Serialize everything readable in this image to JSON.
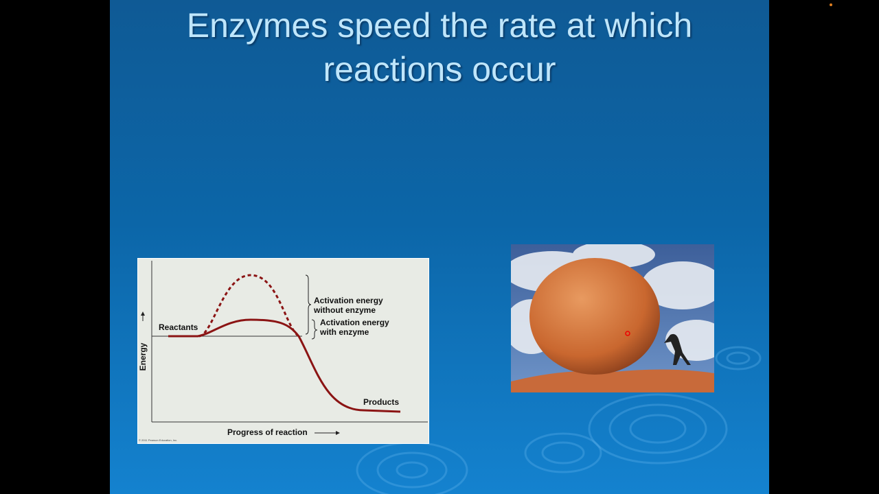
{
  "slide": {
    "title_lines": [
      "Enzymes speed the rate at which",
      "reactions occur"
    ],
    "diagram": {
      "y_axis_label": "Energy",
      "x_axis_label": "Progress of reaction",
      "reactants_label": "Reactants",
      "products_label": "Products",
      "without_enzyme_label": [
        "Activation energy",
        "without enzyme"
      ],
      "with_enzyme_label": [
        "Activation energy",
        "with enzyme"
      ],
      "copyright": "© 2011 Pearson Education, Inc."
    }
  }
}
